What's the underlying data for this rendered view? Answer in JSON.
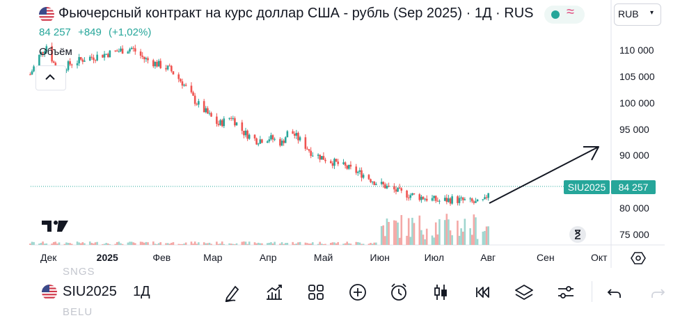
{
  "header": {
    "title": "Фьючерсный контракт на курс доллар США - рубль (Sep 2025) · 1Д · RUS",
    "price": "84 257",
    "change": "+849",
    "change_pct": "(+1,02%)",
    "currency": "RUB",
    "volume_label": "Объём"
  },
  "colors": {
    "up": "#26a69a",
    "down": "#ef5350",
    "up_volume": "#9fd6cf",
    "down_volume": "#f4a8a6",
    "last_price_line": "#26a69a"
  },
  "chart_data": {
    "type": "candlestick",
    "symbol": "SIU2025",
    "last_price": 84257,
    "price_tag": "84 257",
    "y_ticks": [
      "110 000",
      "105 000",
      "100 000",
      "95 000",
      "90 000",
      "80 000",
      "75 000"
    ],
    "y_tick_values": [
      110000,
      105000,
      100000,
      95000,
      90000,
      80000,
      75000
    ],
    "ylim": [
      73500,
      113500
    ],
    "x_ticks": [
      "Дек",
      "2025",
      "Фев",
      "Мар",
      "Апр",
      "Май",
      "Июн",
      "Июл",
      "Авг",
      "Сен",
      "Окт"
    ],
    "x_tick_dates": [
      "2024-12-01",
      "2025-01-01",
      "2025-02-01",
      "2025-03-01",
      "2025-04-01",
      "2025-05-01",
      "2025-06-01",
      "2025-07-01",
      "2025-08-01",
      "2025-09-01",
      "2025-10-01"
    ],
    "close_path": [
      {
        "date": "2024-11-20",
        "close": 105500
      },
      {
        "date": "2024-11-25",
        "close": 109000
      },
      {
        "date": "2024-11-29",
        "close": 111000
      },
      {
        "date": "2024-12-05",
        "close": 106000
      },
      {
        "date": "2024-12-12",
        "close": 107500
      },
      {
        "date": "2024-12-20",
        "close": 108500
      },
      {
        "date": "2024-12-27",
        "close": 109000
      },
      {
        "date": "2025-01-08",
        "close": 110000
      },
      {
        "date": "2025-01-15",
        "close": 110500
      },
      {
        "date": "2025-01-22",
        "close": 108500
      },
      {
        "date": "2025-01-29",
        "close": 107500
      },
      {
        "date": "2025-02-05",
        "close": 106500
      },
      {
        "date": "2025-02-12",
        "close": 104000
      },
      {
        "date": "2025-02-19",
        "close": 100500
      },
      {
        "date": "2025-02-26",
        "close": 98000
      },
      {
        "date": "2025-03-04",
        "close": 96000
      },
      {
        "date": "2025-03-11",
        "close": 97500
      },
      {
        "date": "2025-03-18",
        "close": 94500
      },
      {
        "date": "2025-03-25",
        "close": 93000
      },
      {
        "date": "2025-04-01",
        "close": 93500
      },
      {
        "date": "2025-04-08",
        "close": 92500
      },
      {
        "date": "2025-04-12",
        "close": 95000
      },
      {
        "date": "2025-04-18",
        "close": 93000
      },
      {
        "date": "2025-04-25",
        "close": 90500
      },
      {
        "date": "2025-05-02",
        "close": 89500
      },
      {
        "date": "2025-05-09",
        "close": 88500
      },
      {
        "date": "2025-05-16",
        "close": 87500
      },
      {
        "date": "2025-05-23",
        "close": 86500
      },
      {
        "date": "2025-05-30",
        "close": 85000
      },
      {
        "date": "2025-06-06",
        "close": 84000
      },
      {
        "date": "2025-06-13",
        "close": 83000
      },
      {
        "date": "2025-06-20",
        "close": 82500
      },
      {
        "date": "2025-06-27",
        "close": 82000
      },
      {
        "date": "2025-07-04",
        "close": 81500
      },
      {
        "date": "2025-07-11",
        "close": 81800
      },
      {
        "date": "2025-07-18",
        "close": 81500
      },
      {
        "date": "2025-07-25",
        "close": 81000
      },
      {
        "date": "2025-07-29",
        "close": 81500
      },
      {
        "date": "2025-08-01",
        "close": 84257
      }
    ],
    "volume_note": "volume bars shown in lower panel, larger from June onward",
    "annotation": "upward arrow drawn from early August toward ~90 000 in October",
    "grid": false
  },
  "toolbar": {
    "symbol": "SIU2025",
    "timeframe": "1Д",
    "ghost_above": "SNGS",
    "ghost_below": "BELU",
    "icons": [
      "brush-icon",
      "indicators-icon",
      "templates-icon",
      "add-icon",
      "alert-icon",
      "candles-icon",
      "replay-icon",
      "layers-icon",
      "settings-sliders-icon",
      "undo-icon",
      "redo-icon"
    ]
  }
}
